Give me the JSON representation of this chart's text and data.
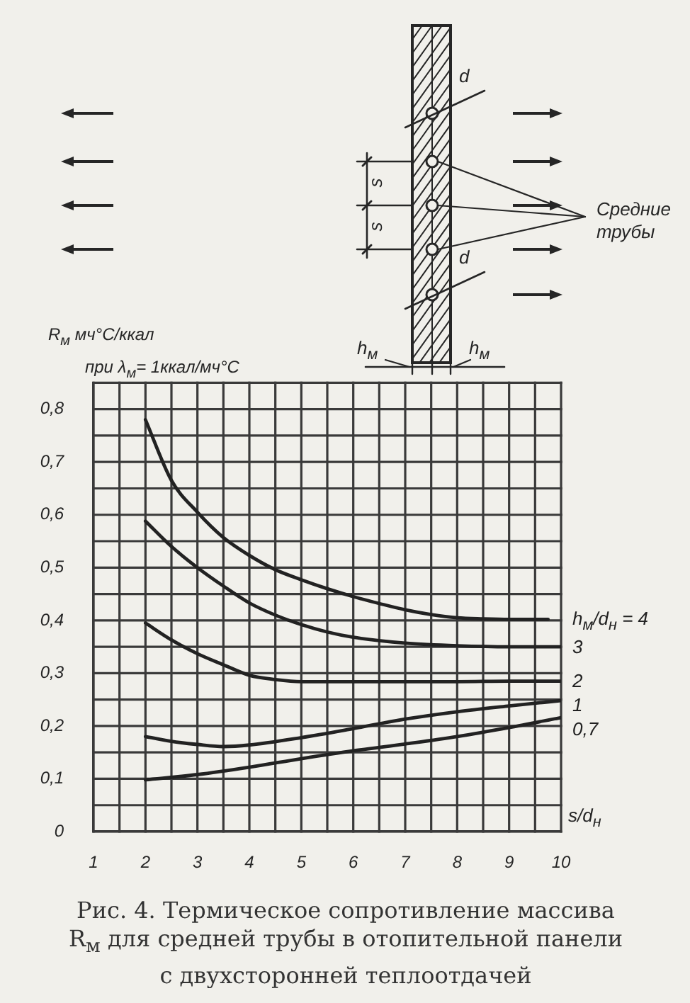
{
  "chart_data": {
    "type": "line",
    "ylabel": "R$_{м}$ мч°С/ккал\nпри λ$_{м}$= 1ккал/мч°С",
    "xlabel": "s/d$_{н}$",
    "series": [
      {
        "name": "h$_{м}$/d$_{н}$ = 4",
        "color": "#222222",
        "x": [
          2,
          2.5,
          3,
          3.5,
          4,
          4.5,
          5,
          5.5,
          6,
          6.5,
          7,
          7.5,
          8,
          8.5,
          9,
          9.75
        ],
        "values": [
          0.78,
          0.665,
          0.605,
          0.557,
          0.523,
          0.496,
          0.477,
          0.46,
          0.445,
          0.432,
          0.42,
          0.411,
          0.405,
          0.403,
          0.402,
          0.402
        ]
      },
      {
        "name": "3",
        "color": "#222222",
        "x": [
          2,
          2.5,
          3,
          3.5,
          4,
          4.5,
          5,
          5.5,
          6,
          7,
          8,
          9,
          10
        ],
        "values": [
          0.588,
          0.54,
          0.5,
          0.465,
          0.433,
          0.41,
          0.392,
          0.378,
          0.368,
          0.357,
          0.352,
          0.35,
          0.35
        ]
      },
      {
        "name": "2",
        "color": "#222222",
        "x": [
          2,
          2.5,
          3,
          3.5,
          4,
          4.5,
          5,
          6,
          7,
          8,
          9,
          10
        ],
        "values": [
          0.395,
          0.363,
          0.337,
          0.316,
          0.296,
          0.288,
          0.284,
          0.284,
          0.284,
          0.284,
          0.285,
          0.285
        ]
      },
      {
        "name": "1",
        "color": "#222222",
        "x": [
          2,
          2.5,
          3,
          3.5,
          4,
          5,
          6,
          7,
          8,
          9,
          10
        ],
        "values": [
          0.18,
          0.171,
          0.165,
          0.161,
          0.164,
          0.178,
          0.195,
          0.213,
          0.227,
          0.238,
          0.248
        ]
      },
      {
        "name": "0,7",
        "color": "#222222",
        "x": [
          2,
          3,
          4,
          5,
          6,
          7,
          8,
          9,
          10
        ],
        "values": [
          0.098,
          0.108,
          0.122,
          0.138,
          0.153,
          0.166,
          0.18,
          0.197,
          0.216
        ]
      }
    ],
    "xlim": [
      1,
      10
    ],
    "xticks": [
      1,
      {
        "value": 1.5,
        "label": null
      },
      2,
      {
        "value": 2.5,
        "label": null
      },
      3,
      {
        "value": 3.5,
        "label": null
      },
      4,
      {
        "value": 4.5,
        "label": null
      },
      5,
      {
        "value": 5.5,
        "label": null
      },
      6,
      {
        "value": 6.5,
        "label": null
      },
      7,
      {
        "value": 7.5,
        "label": null
      },
      8,
      {
        "value": 8.5,
        "label": null
      },
      9,
      {
        "value": 9.5,
        "label": null
      },
      10
    ],
    "ylim": [
      0,
      0.85
    ],
    "yticks": [
      0,
      {
        "value": 0.05,
        "label": null
      },
      {
        "value": 0.1,
        "label": "0,1"
      },
      {
        "value": 0.15,
        "label": null
      },
      {
        "value": 0.2,
        "label": "0,2"
      },
      {
        "value": 0.25,
        "label": null
      },
      {
        "value": 0.3,
        "label": "0,3"
      },
      {
        "value": 0.35,
        "label": null
      },
      {
        "value": 0.4,
        "label": "0,4"
      },
      {
        "value": 0.45,
        "label": null
      },
      {
        "value": 0.5,
        "label": "0,5"
      },
      {
        "value": 0.55,
        "label": null
      },
      {
        "value": 0.6,
        "label": "0,6"
      },
      {
        "value": 0.65,
        "label": null
      },
      {
        "value": 0.7,
        "label": "0,7"
      },
      {
        "value": 0.75,
        "label": null
      },
      {
        "value": 0.8,
        "label": "0,8"
      },
      {
        "value": 0.85,
        "label": null
      }
    ],
    "grid": true,
    "legend": false,
    "marker": "none",
    "line_style": "solid",
    "annotations": [
      "Рис. 4. Термическое сопротивление массива R$_{м}$ для средней трубы в отопительной панели с двухсторонней теплоотдачей",
      "Средние трубы",
      "d",
      "d",
      "s",
      "s",
      "h$_{м}$",
      "h$_{м}$"
    ]
  }
}
